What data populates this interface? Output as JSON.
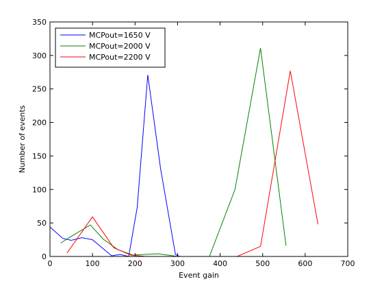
{
  "chart_data": {
    "type": "line",
    "title": "",
    "xlabel": "Event gain",
    "ylabel": "Number of events",
    "xlim": [
      0,
      700
    ],
    "ylim": [
      0,
      350
    ],
    "xticks": [
      0,
      100,
      200,
      300,
      400,
      500,
      600,
      700
    ],
    "yticks": [
      0,
      50,
      100,
      150,
      200,
      250,
      300,
      350
    ],
    "xtick_labels": [
      "0",
      "100",
      "200",
      "300",
      "400",
      "500",
      "600",
      "700"
    ],
    "ytick_labels": [
      "0",
      "50",
      "100",
      "150",
      "200",
      "250",
      "300",
      "350"
    ],
    "grid": false,
    "legend_position": "top-left",
    "series": [
      {
        "name": "MCPout=1650 V",
        "color": "#0000ff",
        "x": [
          0,
          30,
          50,
          75,
          100,
          145,
          165,
          185,
          205,
          230,
          260,
          295,
          305
        ],
        "y": [
          44,
          27,
          24,
          28,
          25,
          1,
          3,
          0,
          73,
          271,
          131,
          3,
          0
        ]
      },
      {
        "name": "MCPout=2000 V",
        "color": "#008000",
        "x": [
          25,
          50,
          95,
          125,
          160,
          195,
          220,
          255,
          300,
          375,
          435,
          495,
          555
        ],
        "y": [
          20,
          30,
          47,
          26,
          10,
          2,
          3,
          4,
          0,
          0,
          100,
          311,
          16
        ]
      },
      {
        "name": "MCPout=2200 V",
        "color": "#ff0000",
        "x": [
          40,
          100,
          150,
          190,
          225,
          440,
          495,
          565,
          630
        ],
        "y": [
          5,
          59,
          13,
          2,
          0,
          0,
          15,
          277,
          48
        ]
      }
    ]
  }
}
